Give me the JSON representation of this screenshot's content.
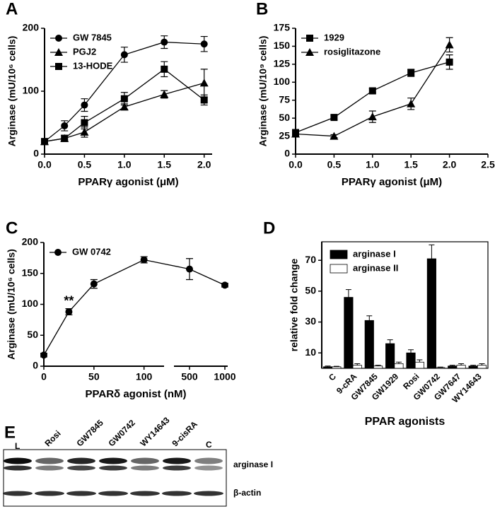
{
  "chart_data": [
    {
      "type": "line",
      "label": "A",
      "xlabel": "PPARγ agonist (μM)",
      "ylabel": "Arginase (mU/10⁶ cells)",
      "x": [
        0,
        0.25,
        0.5,
        1,
        1.5,
        2
      ],
      "xlim": [
        0,
        2.1
      ],
      "xticks": [
        {
          "value": 0,
          "label": "0.0"
        },
        {
          "value": 0.5,
          "label": "0.5"
        },
        {
          "value": 1,
          "label": "1.0"
        },
        {
          "value": 1.5,
          "label": "1.5"
        },
        {
          "value": 2,
          "label": "2.0"
        }
      ],
      "ylim": [
        0,
        200
      ],
      "yticks": [
        0,
        100,
        200
      ],
      "legend": "upper left",
      "series": [
        {
          "name": "GW 7845",
          "marker": "circle",
          "color": "#000000",
          "values": [
            20,
            45,
            78,
            158,
            178,
            175
          ],
          "errors": [
            3,
            8,
            10,
            12,
            10,
            12
          ]
        },
        {
          "name": "PGJ2",
          "marker": "triangle",
          "color": "#000000",
          "values": [
            20,
            25,
            35,
            75,
            95,
            113
          ],
          "errors": [
            3,
            5,
            8,
            5,
            6,
            22
          ]
        },
        {
          "name": "13-HODE",
          "marker": "square",
          "color": "#000000",
          "values": [
            20,
            25,
            50,
            88,
            135,
            86
          ],
          "errors": [
            3,
            5,
            10,
            10,
            12,
            8
          ]
        }
      ]
    },
    {
      "type": "line",
      "label": "B",
      "xlabel": "PPARγ agonist (μM)",
      "ylabel": "Arginase (mU/10⁹ cells)",
      "x": [
        0,
        0.5,
        1,
        1.5,
        2
      ],
      "xlim": [
        0,
        2.5
      ],
      "xticks": [
        {
          "value": 0,
          "label": "0.0"
        },
        {
          "value": 0.5,
          "label": "0.5"
        },
        {
          "value": 1,
          "label": "1.0"
        },
        {
          "value": 1.5,
          "label": "1.5"
        },
        {
          "value": 2,
          "label": "2.0"
        },
        {
          "value": 2.5,
          "label": "2.5"
        }
      ],
      "ylim": [
        0,
        175
      ],
      "yticks": [
        0,
        25,
        50,
        75,
        100,
        125,
        150,
        175
      ],
      "legend": "upper left",
      "series": [
        {
          "name": "1929",
          "marker": "square",
          "color": "#000000",
          "values": [
            30,
            51,
            88,
            113,
            128
          ],
          "errors": [
            3,
            3,
            3,
            5,
            10
          ]
        },
        {
          "name": "rosiglitazone",
          "marker": "triangle",
          "color": "#000000",
          "values": [
            28,
            25,
            52,
            70,
            152
          ],
          "errors": [
            3,
            2,
            8,
            8,
            10
          ]
        }
      ]
    },
    {
      "type": "line",
      "label": "C",
      "xlabel": "PPARδ agonist (nM)",
      "ylabel": "Arginase (mU/10⁶ cells)",
      "x": [
        0,
        25,
        50,
        100,
        500,
        1000
      ],
      "xsegments": [
        {
          "xlim": [
            0,
            120
          ],
          "xticks": [
            0,
            50,
            100
          ]
        },
        {
          "xlim": [
            280,
            1040
          ],
          "xticks": [
            500,
            1000
          ]
        }
      ],
      "ylim": [
        0,
        200
      ],
      "yticks": [
        0,
        50,
        100,
        150,
        200
      ],
      "legend": "upper left",
      "annotations": [
        {
          "text": "**",
          "x": 25
        }
      ],
      "series": [
        {
          "name": "GW 0742",
          "marker": "circle",
          "color": "#000000",
          "values": [
            18,
            88,
            133,
            172,
            157,
            131
          ],
          "errors": [
            3,
            5,
            7,
            5,
            17,
            3
          ]
        }
      ]
    },
    {
      "type": "bar",
      "label": "D",
      "xlabel": "PPAR agonists",
      "ylabel": "relative fold change",
      "categories": [
        "C",
        "9-cRA",
        "GW7845",
        "GW1929",
        "Rosi",
        "GW0742",
        "GW7647",
        "WY14643"
      ],
      "ylim": [
        0,
        82
      ],
      "yticks": [
        10,
        30,
        50,
        70
      ],
      "legend": "upper left",
      "series": [
        {
          "name": "arginase I",
          "color": "#000000",
          "values": [
            1,
            46,
            31,
            16,
            10,
            71,
            1.5,
            1.5
          ],
          "errors": [
            0.5,
            5,
            3,
            2.5,
            2,
            9,
            0.5,
            0.5
          ]
        },
        {
          "name": "arginase II",
          "color": "#ffffff",
          "values": [
            1,
            2,
            1.5,
            3,
            4,
            0.5,
            2,
            2
          ],
          "errors": [
            0.3,
            1,
            0.5,
            1,
            1.5,
            0.3,
            1,
            1
          ]
        }
      ]
    }
  ],
  "blot": {
    "label": "E",
    "lanes": [
      "L",
      "Rosi",
      "GW7845",
      "GW0742",
      "WY14643",
      "9-cisRA",
      "C"
    ],
    "rows": [
      "arginase I",
      "β-actin"
    ]
  }
}
